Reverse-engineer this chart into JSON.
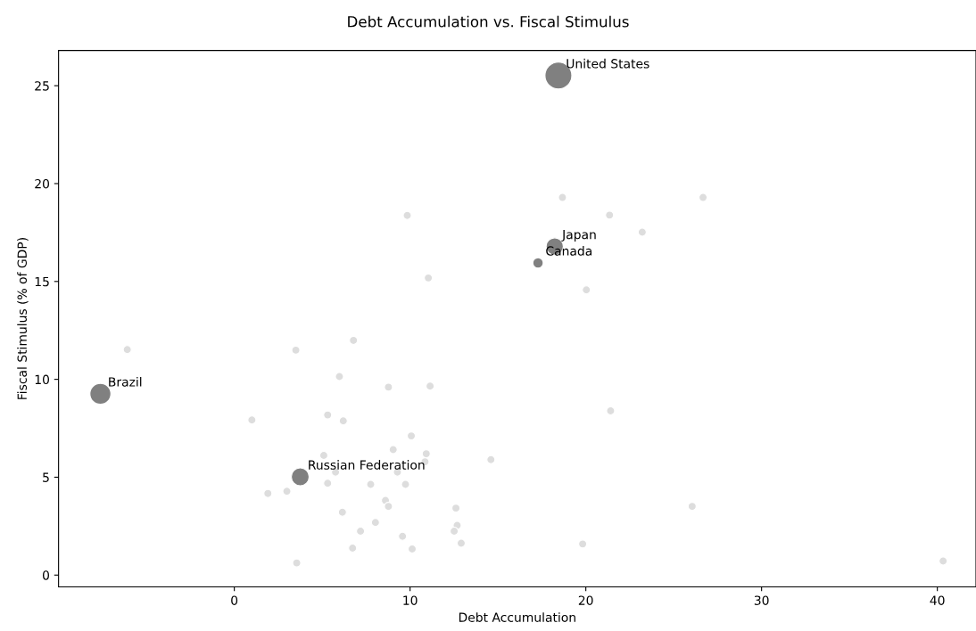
{
  "chart_data": {
    "type": "bubble",
    "title": "Debt Accumulation vs. Fiscal Stimulus",
    "xlabel": "Debt Accumulation",
    "ylabel": "Fiscal Stimulus (% of GDP)",
    "xlim": [
      -10,
      42.2
    ],
    "ylim": [
      -0.6,
      26.8
    ],
    "xticks": [
      0,
      10,
      20,
      30,
      40
    ],
    "yticks": [
      0,
      5,
      10,
      15,
      20,
      25
    ],
    "grid": false,
    "legend": false,
    "series": [
      {
        "color": "#dddddd",
        "x": [
          9.84,
          11.04,
          -6.09,
          3.5,
          6.78,
          5.98,
          8.77,
          11.14,
          1.0,
          5.31,
          6.2,
          10.07,
          9.04,
          10.92,
          14.6,
          5.09,
          10.85,
          9.28,
          5.76,
          5.31,
          7.76,
          9.74,
          1.91,
          2.99,
          8.6,
          8.77,
          12.61,
          6.15,
          8.03,
          7.18,
          12.68,
          12.51,
          9.57,
          12.91,
          6.73,
          10.12,
          3.55,
          18.67,
          26.67,
          21.35,
          23.21,
          20.03,
          21.41,
          26.05,
          19.82,
          40.33
        ],
        "values": [
          18.37,
          15.18,
          11.52,
          11.49,
          11.99,
          10.14,
          9.6,
          9.65,
          7.92,
          8.18,
          7.88,
          7.11,
          6.41,
          6.2,
          5.9,
          6.11,
          5.79,
          5.26,
          5.26,
          4.69,
          4.63,
          4.63,
          4.17,
          4.28,
          3.81,
          3.51,
          3.42,
          3.21,
          2.69,
          2.24,
          2.54,
          2.24,
          1.98,
          1.63,
          1.38,
          1.33,
          0.62,
          19.29,
          19.29,
          18.39,
          17.52,
          14.57,
          8.39,
          3.51,
          1.59,
          0.72
        ],
        "sizes": [
          0.09,
          0.09,
          0.09,
          0.09,
          0.09,
          0.09,
          0.09,
          0.09,
          0.09,
          0.09,
          0.09,
          0.09,
          0.09,
          0.09,
          0.09,
          0.09,
          0.09,
          0.09,
          0.09,
          0.09,
          0.09,
          0.09,
          0.09,
          0.09,
          0.09,
          0.09,
          0.09,
          0.09,
          0.09,
          0.09,
          0.09,
          0.09,
          0.09,
          0.09,
          0.09,
          0.09,
          0.09,
          0.09,
          0.09,
          0.09,
          0.09,
          0.09,
          0.09,
          0.09,
          0.09,
          0.09
        ]
      },
      {
        "color": "#808080",
        "x": [
          18.44,
          18.23,
          17.28,
          -7.62,
          3.75
        ],
        "values": [
          25.52,
          16.79,
          15.95,
          9.26,
          5.02
        ],
        "sizes": [
          1,
          0.41,
          0.15,
          0.61,
          0.44
        ]
      }
    ],
    "annotations": [
      {
        "text": "United States",
        "x": 18.44,
        "y": 25.52
      },
      {
        "text": "Japan",
        "x": 18.23,
        "y": 16.79
      },
      {
        "text": "Canada",
        "x": 17.28,
        "y": 15.95
      },
      {
        "text": "Brazil",
        "x": -7.62,
        "y": 9.26
      },
      {
        "text": "Russian Federation",
        "x": 3.75,
        "y": 5.02
      }
    ]
  }
}
